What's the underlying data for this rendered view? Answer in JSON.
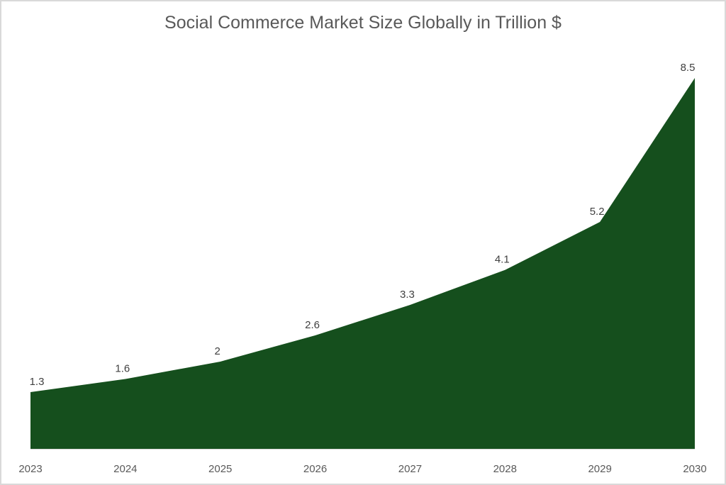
{
  "chart_data": {
    "type": "area",
    "title": "Social Commerce Market Size Globally in Trillion $",
    "categories": [
      "2023",
      "2024",
      "2025",
      "2026",
      "2027",
      "2028",
      "2029",
      "2030"
    ],
    "values": [
      1.3,
      1.6,
      2,
      2.6,
      3.3,
      4.1,
      5.2,
      8.5
    ],
    "data_labels": [
      "1.3",
      "1.6",
      "2",
      "2.6",
      "3.3",
      "4.1",
      "5.2",
      "8.5"
    ],
    "xlabel": "",
    "ylabel": "",
    "ylim": [
      0,
      8.5
    ],
    "grid": false,
    "legend": "none",
    "colors": {
      "fill": "#154f1d",
      "axis": "#d9d9d9",
      "border": "#d9d9d9"
    }
  }
}
